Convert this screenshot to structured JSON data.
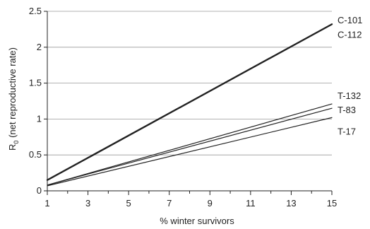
{
  "chart_data": {
    "type": "line",
    "xlabel": "% winter survivors",
    "ylabel": "R",
    "ylabel_subscript": "0",
    "ylabel_suffix": " (net reproductive rate)",
    "xlim": [
      1,
      15
    ],
    "ylim": [
      0,
      2.5
    ],
    "x_ticks": [
      1,
      3,
      5,
      7,
      9,
      11,
      13,
      15
    ],
    "y_ticks": [
      0,
      0.5,
      1,
      1.5,
      2,
      2.5
    ],
    "y_tick_labels": [
      "0",
      "0.5",
      "1",
      "1.5",
      "2",
      "2.5"
    ],
    "grid": "horizontal",
    "series": [
      {
        "name": "C-101",
        "x": [
          1,
          15
        ],
        "y": [
          0.15,
          2.32
        ],
        "stroke": 2.2
      },
      {
        "name": "C-112",
        "x": [
          1,
          15
        ],
        "y": [
          0.15,
          2.32
        ],
        "stroke": 2.2
      },
      {
        "name": "T-132",
        "x": [
          1,
          15
        ],
        "y": [
          0.08,
          1.21
        ],
        "stroke": 1.2
      },
      {
        "name": "T-83",
        "x": [
          1,
          15
        ],
        "y": [
          0.08,
          1.15
        ],
        "stroke": 1.2
      },
      {
        "name": "T-17",
        "x": [
          1,
          15
        ],
        "y": [
          0.07,
          1.02
        ],
        "stroke": 1.2
      }
    ],
    "series_labels": [
      {
        "text": "C-101",
        "y": 2.37
      },
      {
        "text": "C-112",
        "y": 2.17
      },
      {
        "text": "T-132",
        "y": 1.32
      },
      {
        "text": "T-83",
        "y": 1.12
      },
      {
        "text": "T-17",
        "y": 0.82
      }
    ],
    "colors": {
      "line": "#222222",
      "grid": "#999999",
      "axis": "#222222"
    }
  }
}
